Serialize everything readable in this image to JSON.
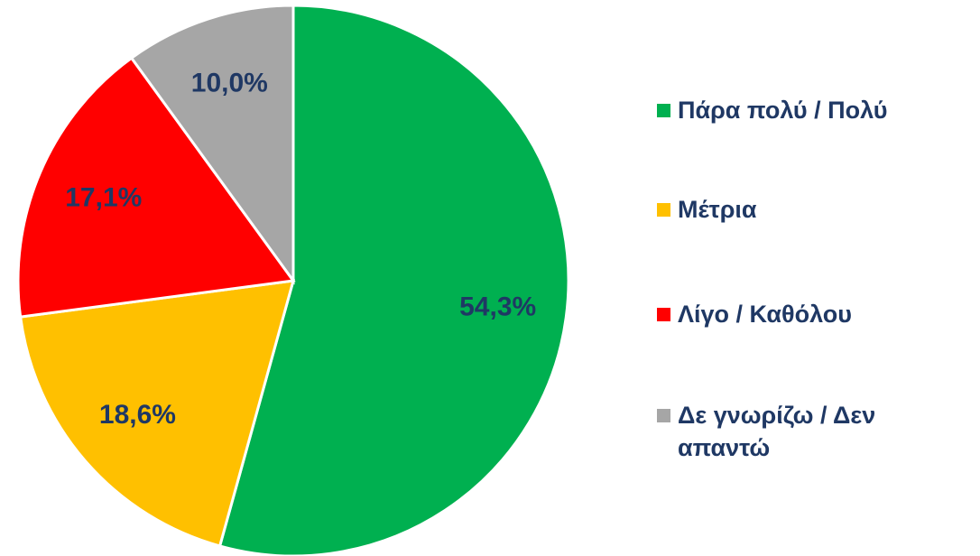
{
  "chart_data": {
    "type": "pie",
    "categories": [
      "Πάρα πολύ / Πολύ",
      "Μέτρια",
      "Λίγο / Καθόλου",
      "Δε γνωρίζω / Δεν απαντώ"
    ],
    "values": [
      54.3,
      18.6,
      17.1,
      10.0
    ],
    "value_labels": [
      "54,3%",
      "18,6%",
      "17,1%",
      "10,0%"
    ],
    "colors": [
      "#00b050",
      "#ffc000",
      "#ff0000",
      "#a6a6a6"
    ],
    "legend": "right"
  }
}
